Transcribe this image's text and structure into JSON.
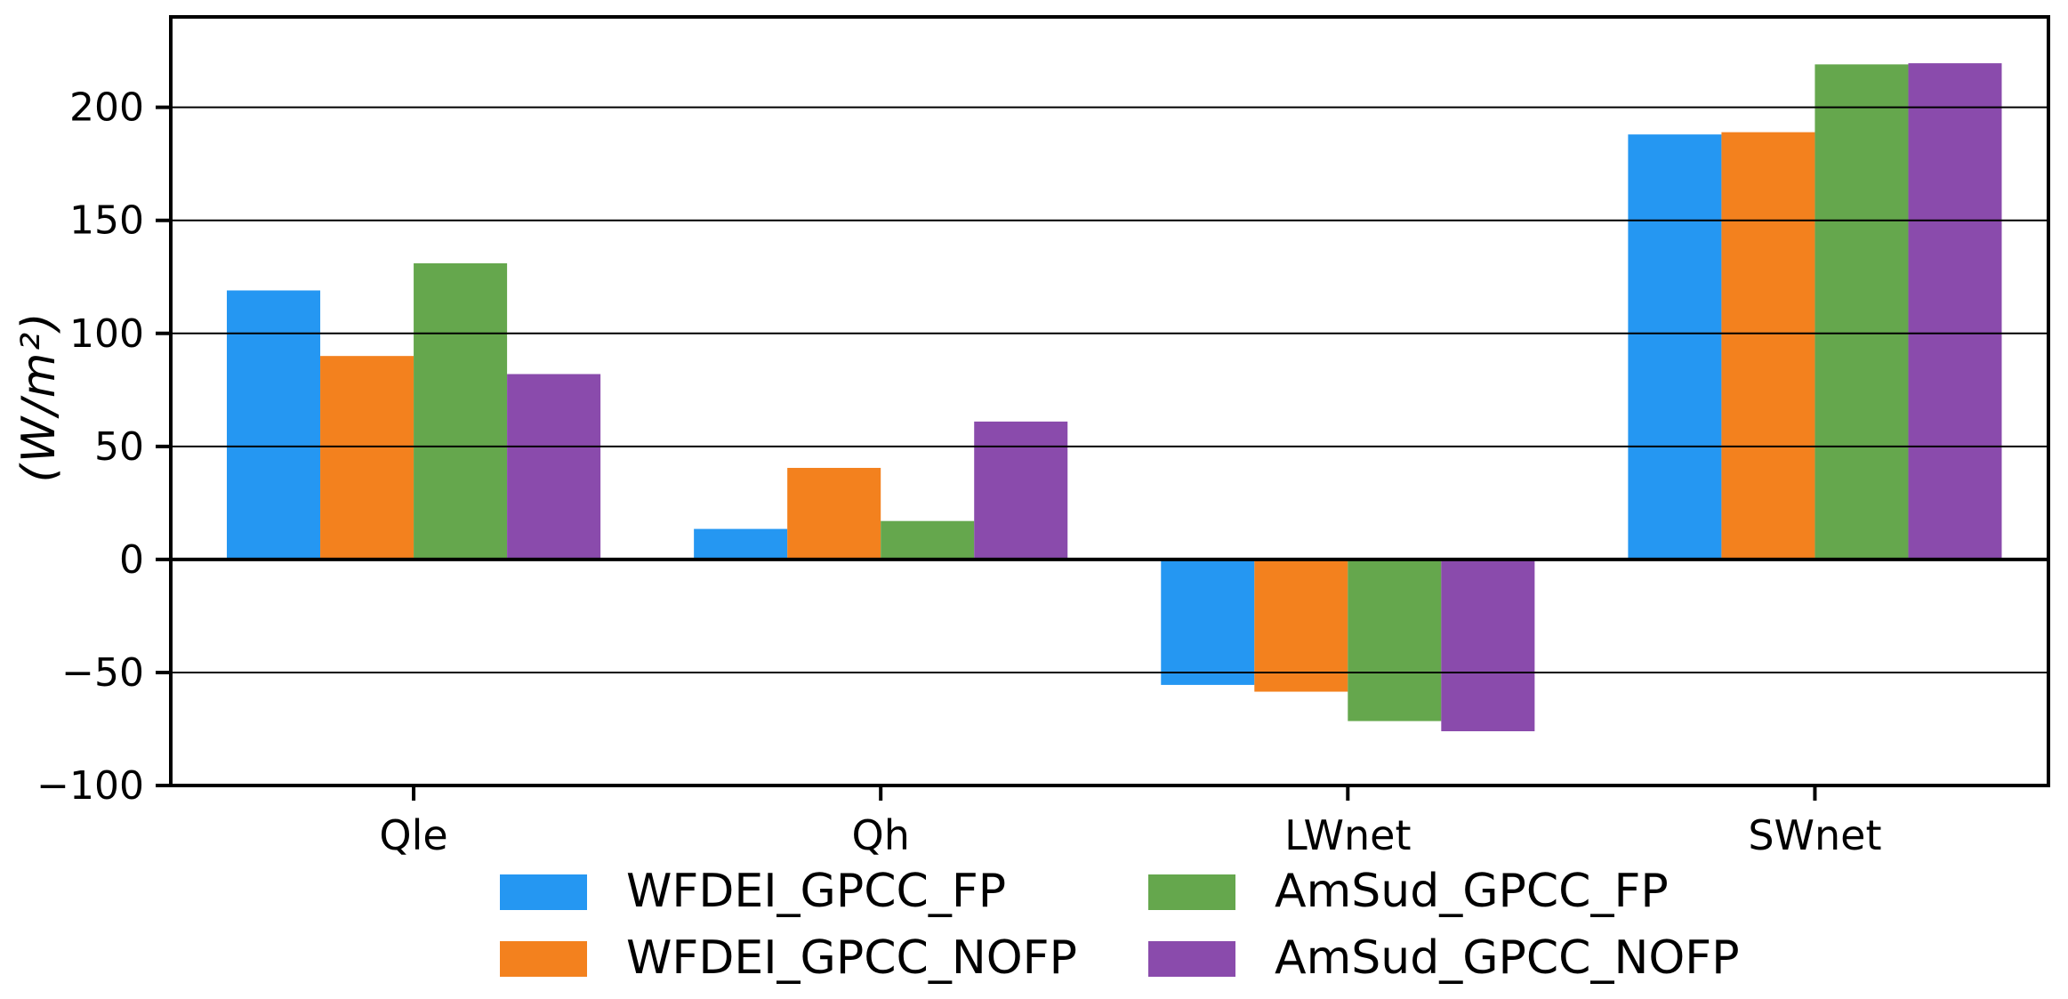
{
  "chart_data": {
    "type": "bar",
    "ylabel": "(W/m²)",
    "categories": [
      "Qle",
      "Qh",
      "LWnet",
      "SWnet"
    ],
    "series": [
      {
        "name": "WFDEI_GPCC_FP",
        "color": "#2597F2",
        "values": [
          119,
          13.5,
          -55.5,
          188
        ]
      },
      {
        "name": "WFDEI_GPCC_NOFP",
        "color": "#F3811E",
        "values": [
          90,
          40.5,
          -58.5,
          189
        ]
      },
      {
        "name": "AmSud_GPCC_FP",
        "color": "#65A74D",
        "values": [
          131,
          17,
          -71.5,
          219
        ]
      },
      {
        "name": "AmSud_GPCC_NOFP",
        "color": "#8A4BAC",
        "values": [
          82,
          61,
          -76,
          219.5
        ]
      }
    ],
    "y_ticks": [
      200,
      150,
      100,
      50,
      0,
      -50,
      -100
    ],
    "y_tick_labels": [
      "200",
      "150",
      "100",
      "50",
      "0",
      "−50",
      "−100"
    ],
    "ylim": [
      -100,
      240
    ],
    "grid": "horizontal",
    "grid_on_top": true,
    "zero_line": true,
    "legend_position": "below",
    "legend_ncol": 2
  },
  "colors": {
    "axis": "#000000",
    "grid": "#000000",
    "background": "#ffffff"
  }
}
